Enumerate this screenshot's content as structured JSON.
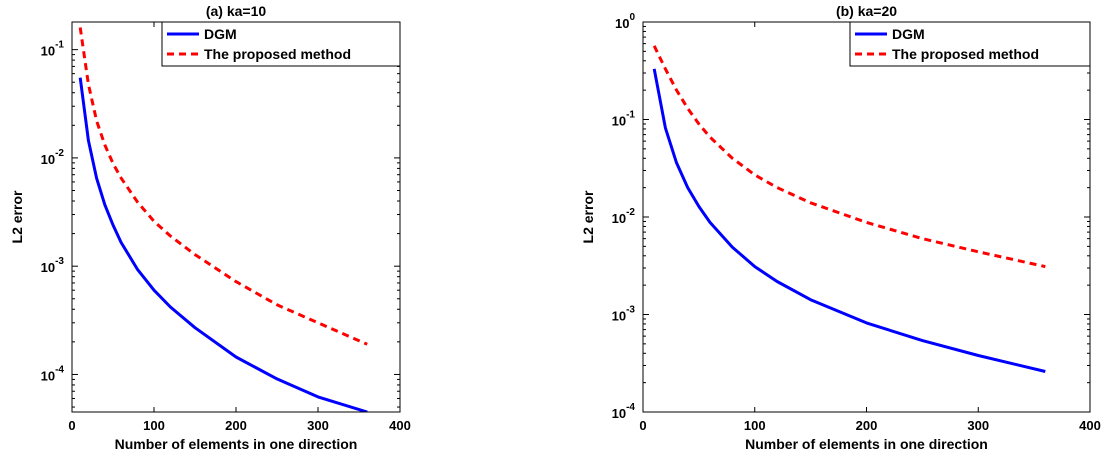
{
  "chart_data": [
    {
      "type": "line",
      "title": "(a) ka=10",
      "xlabel": "Number of elements in one direction",
      "ylabel": "L2 error",
      "xlim": [
        0,
        400
      ],
      "ylim": [
        4.5e-05,
        0.18
      ],
      "yscale": "log",
      "xticks": [
        0,
        100,
        200,
        300,
        400
      ],
      "yticks": [
        {
          "value": 0.0001,
          "base": "10",
          "exp": "-4"
        },
        {
          "value": 0.001,
          "base": "10",
          "exp": "-3"
        },
        {
          "value": 0.01,
          "base": "10",
          "exp": "-2"
        },
        {
          "value": 0.1,
          "base": "10",
          "exp": "-1"
        }
      ],
      "grid": false,
      "legend_position": "top-right",
      "series": [
        {
          "name": "DGM",
          "color": "#0000ff",
          "style": "solid",
          "x": [
            10,
            20,
            30,
            40,
            50,
            60,
            80,
            100,
            120,
            150,
            200,
            250,
            300,
            360
          ],
          "y": [
            0.055,
            0.0145,
            0.0065,
            0.0037,
            0.0024,
            0.00165,
            0.00093,
            0.0006,
            0.00042,
            0.00027,
            0.000145,
            9.1e-05,
            6.2e-05,
            4.5e-05
          ]
        },
        {
          "name": "The proposed method",
          "color": "#ff0000",
          "style": "dashed",
          "x": [
            10,
            20,
            30,
            40,
            50,
            60,
            80,
            100,
            120,
            150,
            200,
            250,
            300,
            360
          ],
          "y": [
            0.16,
            0.048,
            0.022,
            0.0132,
            0.0089,
            0.0065,
            0.0039,
            0.0026,
            0.0019,
            0.00128,
            0.00072,
            0.00044,
            0.0003,
            0.00019
          ]
        }
      ]
    },
    {
      "type": "line",
      "title": "(b) ka=20",
      "xlabel": "Number of elements in one direction",
      "ylabel": "L2 error",
      "xlim": [
        0,
        400
      ],
      "ylim": [
        0.0001,
        1
      ],
      "yscale": "log",
      "xticks": [
        0,
        100,
        200,
        300,
        400
      ],
      "yticks": [
        {
          "value": 0.0001,
          "base": "10",
          "exp": "-4"
        },
        {
          "value": 0.001,
          "base": "10",
          "exp": "-3"
        },
        {
          "value": 0.01,
          "base": "10",
          "exp": "-2"
        },
        {
          "value": 0.1,
          "base": "10",
          "exp": "-1"
        },
        {
          "value": 1,
          "base": "10",
          "exp": "0"
        }
      ],
      "grid": false,
      "legend_position": "top-right",
      "series": [
        {
          "name": "DGM",
          "color": "#0000ff",
          "style": "solid",
          "x": [
            10,
            20,
            30,
            40,
            50,
            60,
            80,
            100,
            120,
            150,
            200,
            250,
            300,
            360
          ],
          "y": [
            0.33,
            0.082,
            0.036,
            0.02,
            0.0128,
            0.0088,
            0.0049,
            0.0031,
            0.00218,
            0.00142,
            0.00082,
            0.00054,
            0.00038,
            0.00026
          ]
        },
        {
          "name": "The proposed method",
          "color": "#ff0000",
          "style": "dashed",
          "x": [
            10,
            20,
            30,
            40,
            50,
            60,
            80,
            100,
            120,
            150,
            200,
            250,
            300,
            360
          ],
          "y": [
            0.57,
            0.33,
            0.2,
            0.13,
            0.09,
            0.066,
            0.04,
            0.027,
            0.02,
            0.014,
            0.0088,
            0.006,
            0.0044,
            0.0031
          ]
        }
      ]
    }
  ]
}
